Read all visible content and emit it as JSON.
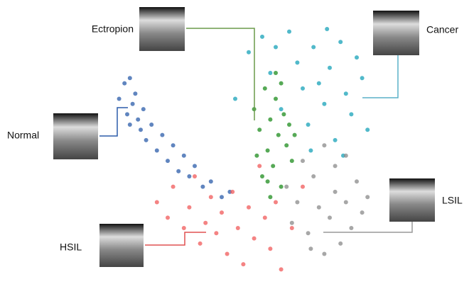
{
  "chart_data": {
    "type": "scatter",
    "xlim": [
      0,
      100
    ],
    "ylim": [
      0,
      100
    ],
    "series": [
      {
        "name": "Cancer",
        "color": "#17a2b8",
        "x": [
          45,
          50,
          55,
          58,
          62,
          65,
          68,
          70,
          72,
          74,
          76,
          78,
          80,
          82,
          84,
          86,
          88,
          90,
          92,
          94,
          60,
          73,
          79,
          85
        ],
        "values": [
          70,
          88,
          94,
          80,
          66,
          96,
          84,
          74,
          60,
          90,
          76,
          68,
          82,
          54,
          92,
          72,
          64,
          86,
          78,
          58,
          90,
          50,
          97,
          48
        ]
      },
      {
        "name": "Ectropion",
        "color": "#1e8c1e",
        "x": [
          52,
          54,
          56,
          57,
          58,
          59,
          60,
          61,
          62,
          63,
          64,
          65,
          66,
          55,
          58,
          60,
          62,
          57,
          53,
          67
        ],
        "values": [
          66,
          58,
          74,
          50,
          62,
          44,
          70,
          56,
          36,
          64,
          52,
          60,
          46,
          40,
          32,
          80,
          76,
          38,
          48,
          56
        ]
      },
      {
        "name": "Normal",
        "color": "#2b5caa",
        "x": [
          2,
          4,
          5,
          6,
          7,
          8,
          9,
          10,
          11,
          12,
          14,
          16,
          18,
          20,
          22,
          24,
          26,
          28,
          30,
          33,
          36,
          40,
          43,
          6
        ],
        "values": [
          70,
          76,
          64,
          60,
          68,
          72,
          62,
          58,
          66,
          54,
          60,
          50,
          56,
          46,
          52,
          42,
          48,
          40,
          44,
          36,
          38,
          32,
          34,
          78
        ]
      },
      {
        "name": "HSIL",
        "color": "#f05a5a",
        "x": [
          16,
          20,
          22,
          26,
          28,
          30,
          32,
          34,
          36,
          38,
          40,
          42,
          44,
          46,
          48,
          50,
          52,
          54,
          56,
          58,
          60,
          62,
          66,
          70
        ],
        "values": [
          30,
          24,
          36,
          20,
          28,
          40,
          14,
          22,
          32,
          18,
          26,
          10,
          34,
          20,
          6,
          28,
          16,
          44,
          24,
          12,
          30,
          4,
          20,
          36
        ]
      },
      {
        "name": "LSIL",
        "color": "#8a8a8a",
        "x": [
          64,
          66,
          68,
          70,
          72,
          74,
          76,
          78,
          80,
          82,
          84,
          86,
          88,
          90,
          92,
          94,
          78,
          82,
          86,
          73
        ],
        "values": [
          36,
          22,
          30,
          46,
          18,
          40,
          28,
          52,
          24,
          34,
          14,
          30,
          20,
          38,
          26,
          32,
          10,
          44,
          48,
          12
        ]
      }
    ]
  }
}
